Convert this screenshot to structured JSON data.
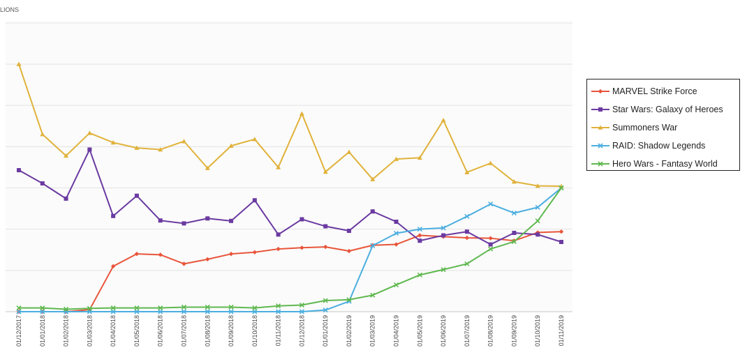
{
  "chart_data": {
    "type": "line",
    "title": "",
    "ylabel_fragment": "LIONS",
    "xlabel": "",
    "ylim": [
      0,
      6
    ],
    "grid": true,
    "x": [
      "01/12/2017",
      "01/01/2018",
      "01/02/2018",
      "01/03/2018",
      "01/04/2018",
      "01/05/2018",
      "01/06/2018",
      "01/07/2018",
      "01/08/2018",
      "01/09/2018",
      "01/10/2018",
      "01/11/2018",
      "01/12/2018",
      "01/01/2019",
      "01/02/2019",
      "01/03/2019",
      "01/04/2019",
      "01/05/2019",
      "01/06/2019",
      "01/07/2019",
      "01/08/2019",
      "01/09/2019",
      "01/10/2019",
      "01/11/2019"
    ],
    "series": [
      {
        "name": "MARVEL Strike Force",
        "color": "#e8553a",
        "marker": "diamond",
        "values": [
          0,
          0,
          0,
          0.05,
          1.1,
          1.4,
          1.38,
          1.16,
          1.27,
          1.4,
          1.44,
          1.52,
          1.55,
          1.57,
          1.47,
          1.61,
          1.63,
          1.85,
          1.82,
          1.79,
          1.78,
          1.72,
          1.92,
          1.94
        ]
      },
      {
        "name": "Star Wars: Galaxy of Heroes",
        "color": "#6a3aa1",
        "marker": "square",
        "values": [
          3.43,
          3.11,
          2.74,
          3.93,
          2.32,
          2.81,
          2.21,
          2.14,
          2.26,
          2.2,
          2.7,
          1.87,
          2.24,
          2.07,
          1.96,
          2.43,
          2.18,
          1.72,
          1.85,
          1.94,
          1.63,
          1.91,
          1.87,
          1.69
        ]
      },
      {
        "name": "Summoners War",
        "color": "#e0b23a",
        "marker": "triangle",
        "values": [
          6.0,
          4.3,
          3.78,
          4.33,
          4.1,
          3.97,
          3.93,
          4.13,
          3.48,
          4.02,
          4.18,
          3.5,
          4.8,
          3.39,
          3.87,
          3.21,
          3.7,
          3.73,
          4.64,
          3.38,
          3.6,
          3.15,
          3.05,
          3.04
        ]
      },
      {
        "name": "RAID: Shadow Legends",
        "color": "#4aaee0",
        "marker": "x",
        "values": [
          0,
          0,
          0,
          0,
          0,
          0,
          0,
          0,
          0,
          0,
          0,
          0,
          0,
          0.04,
          0.25,
          1.6,
          1.9,
          2.0,
          2.03,
          2.31,
          2.61,
          2.39,
          2.53,
          3.0
        ]
      },
      {
        "name": "Hero Wars - Fantasy World",
        "color": "#5fb84f",
        "marker": "x",
        "values": [
          0.09,
          0.09,
          0.06,
          0.08,
          0.09,
          0.09,
          0.09,
          0.11,
          0.11,
          0.11,
          0.09,
          0.14,
          0.16,
          0.27,
          0.29,
          0.4,
          0.65,
          0.89,
          1.02,
          1.16,
          1.52,
          1.7,
          2.2,
          3.0
        ]
      }
    ]
  }
}
